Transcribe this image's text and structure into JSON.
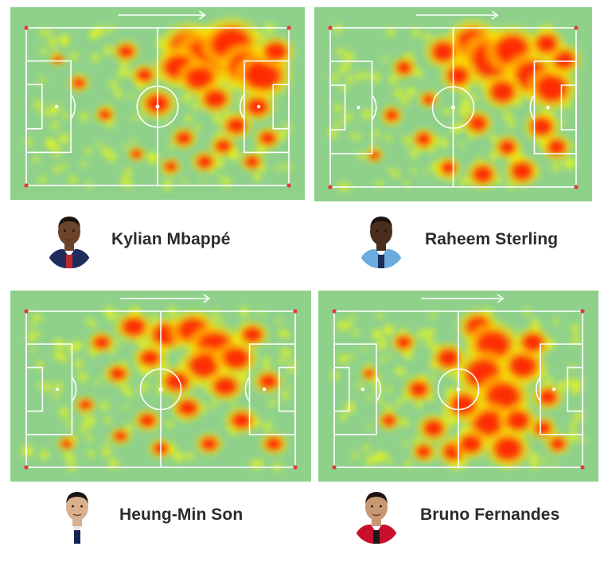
{
  "players": [
    {
      "name": "Kylian Mbappé",
      "avatar_icon": "player-headshot-icon",
      "kit_colors": [
        "#1e2c5e",
        "#c0282e",
        "#ffffff"
      ],
      "skin": "#6b4429",
      "hotspots": [
        [
          0.62,
          0.12,
          0.22
        ],
        [
          0.7,
          0.18,
          0.28
        ],
        [
          0.78,
          0.1,
          0.24
        ],
        [
          0.84,
          0.25,
          0.22
        ],
        [
          0.9,
          0.3,
          0.22
        ],
        [
          0.58,
          0.25,
          0.18
        ],
        [
          0.66,
          0.32,
          0.17
        ],
        [
          0.5,
          0.48,
          0.14
        ],
        [
          0.88,
          0.5,
          0.13
        ],
        [
          0.72,
          0.45,
          0.14
        ],
        [
          0.8,
          0.62,
          0.12
        ],
        [
          0.6,
          0.7,
          0.1
        ],
        [
          0.45,
          0.3,
          0.1
        ],
        [
          0.38,
          0.15,
          0.1
        ],
        [
          0.3,
          0.55,
          0.08
        ],
        [
          0.2,
          0.35,
          0.08
        ],
        [
          0.92,
          0.7,
          0.1
        ],
        [
          0.68,
          0.85,
          0.1
        ],
        [
          0.55,
          0.88,
          0.08
        ],
        [
          0.75,
          0.75,
          0.1
        ],
        [
          0.95,
          0.15,
          0.14
        ],
        [
          0.86,
          0.85,
          0.09
        ],
        [
          0.42,
          0.8,
          0.07
        ],
        [
          0.12,
          0.2,
          0.06
        ]
      ]
    },
    {
      "name": "Raheem Sterling",
      "avatar_icon": "player-headshot-icon",
      "kit_colors": [
        "#6cabdd",
        "#1c2c5b",
        "#ffffff"
      ],
      "skin": "#4a2e1c",
      "hotspots": [
        [
          0.58,
          0.1,
          0.22
        ],
        [
          0.66,
          0.2,
          0.27
        ],
        [
          0.74,
          0.14,
          0.22
        ],
        [
          0.82,
          0.3,
          0.22
        ],
        [
          0.9,
          0.38,
          0.2
        ],
        [
          0.46,
          0.15,
          0.15
        ],
        [
          0.52,
          0.3,
          0.14
        ],
        [
          0.7,
          0.4,
          0.16
        ],
        [
          0.86,
          0.62,
          0.14
        ],
        [
          0.78,
          0.9,
          0.14
        ],
        [
          0.62,
          0.92,
          0.13
        ],
        [
          0.48,
          0.88,
          0.1
        ],
        [
          0.92,
          0.75,
          0.12
        ],
        [
          0.3,
          0.25,
          0.1
        ],
        [
          0.25,
          0.55,
          0.09
        ],
        [
          0.38,
          0.7,
          0.1
        ],
        [
          0.6,
          0.6,
          0.12
        ],
        [
          0.95,
          0.2,
          0.14
        ],
        [
          0.72,
          0.75,
          0.11
        ],
        [
          0.18,
          0.8,
          0.07
        ],
        [
          0.88,
          0.1,
          0.14
        ],
        [
          0.4,
          0.45,
          0.08
        ]
      ]
    },
    {
      "name": "Heung-Min Son",
      "avatar_icon": "player-headshot-icon",
      "kit_colors": [
        "#ffffff",
        "#132257",
        "#e6e6e6"
      ],
      "skin": "#d9b08e",
      "hotspots": [
        [
          0.4,
          0.1,
          0.14
        ],
        [
          0.52,
          0.15,
          0.16
        ],
        [
          0.62,
          0.12,
          0.18
        ],
        [
          0.7,
          0.22,
          0.2
        ],
        [
          0.66,
          0.35,
          0.18
        ],
        [
          0.78,
          0.3,
          0.16
        ],
        [
          0.74,
          0.48,
          0.14
        ],
        [
          0.56,
          0.45,
          0.14
        ],
        [
          0.46,
          0.3,
          0.12
        ],
        [
          0.34,
          0.4,
          0.1
        ],
        [
          0.28,
          0.2,
          0.1
        ],
        [
          0.84,
          0.15,
          0.12
        ],
        [
          0.9,
          0.45,
          0.11
        ],
        [
          0.6,
          0.62,
          0.12
        ],
        [
          0.8,
          0.7,
          0.12
        ],
        [
          0.45,
          0.7,
          0.1
        ],
        [
          0.22,
          0.6,
          0.08
        ],
        [
          0.92,
          0.85,
          0.1
        ],
        [
          0.68,
          0.85,
          0.1
        ],
        [
          0.15,
          0.85,
          0.07
        ],
        [
          0.5,
          0.88,
          0.09
        ],
        [
          0.35,
          0.8,
          0.08
        ]
      ]
    },
    {
      "name": "Bruno Fernandes",
      "avatar_icon": "player-headshot-icon",
      "kit_colors": [
        "#c8102e",
        "#1a1a1a",
        "#ffffff"
      ],
      "skin": "#c89873",
      "hotspots": [
        [
          0.58,
          0.1,
          0.16
        ],
        [
          0.64,
          0.22,
          0.22
        ],
        [
          0.6,
          0.4,
          0.22
        ],
        [
          0.68,
          0.55,
          0.22
        ],
        [
          0.62,
          0.72,
          0.2
        ],
        [
          0.7,
          0.88,
          0.18
        ],
        [
          0.76,
          0.35,
          0.18
        ],
        [
          0.8,
          0.2,
          0.14
        ],
        [
          0.52,
          0.6,
          0.16
        ],
        [
          0.46,
          0.3,
          0.14
        ],
        [
          0.4,
          0.75,
          0.13
        ],
        [
          0.34,
          0.5,
          0.12
        ],
        [
          0.28,
          0.2,
          0.1
        ],
        [
          0.22,
          0.7,
          0.09
        ],
        [
          0.86,
          0.55,
          0.12
        ],
        [
          0.9,
          0.85,
          0.1
        ],
        [
          0.48,
          0.9,
          0.13
        ],
        [
          0.55,
          0.85,
          0.14
        ],
        [
          0.36,
          0.9,
          0.1
        ],
        [
          0.14,
          0.4,
          0.07
        ],
        [
          0.84,
          0.75,
          0.11
        ],
        [
          0.74,
          0.7,
          0.15
        ]
      ]
    }
  ],
  "pitch": {
    "grass": "#8fd18b",
    "lines": "#ffffff",
    "heat_low": "#ffff00",
    "heat_mid": "#ffd000",
    "heat_high": "#ff2a00",
    "corner_flag": "#e53935",
    "attack_direction_icon": "arrow-right-icon"
  }
}
